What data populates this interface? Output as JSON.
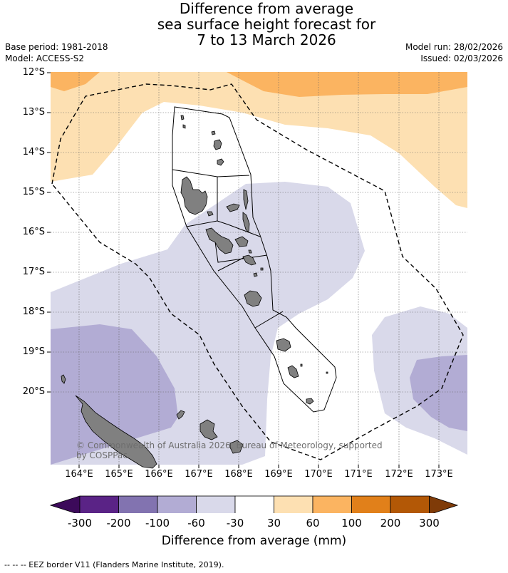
{
  "title": {
    "line1": "Difference from average",
    "line2": "sea surface height forecast for",
    "line3": "7 to 13 March 2026"
  },
  "header_left": {
    "base_period": "Base period: 1981-2018",
    "model": "Model: ACCESS-S2"
  },
  "header_right": {
    "model_run": "Model run: 28/02/2026",
    "issued": "Issued: 02/03/2026"
  },
  "map": {
    "lat_labels": [
      "12°S",
      "13°S",
      "14°S",
      "15°S",
      "16°S",
      "17°S",
      "18°S",
      "19°S",
      "20°S"
    ],
    "lon_labels": [
      "164°E",
      "165°E",
      "166°E",
      "167°E",
      "168°E",
      "169°E",
      "170°E",
      "171°E",
      "172°E",
      "173°E"
    ],
    "copyright_line1": "© Commonwealth of Australia 2026, Bureau of Meteorology, supported",
    "copyright_line2": "by COSPPac",
    "land_color": "#808080",
    "colors": {
      "n300": "#3c0a5a",
      "n200": "#5a2386",
      "n100": "#8273b0",
      "n60": "#b2acd4",
      "n30": "#d9d9ea",
      "zero": "#ffffff",
      "p30": "#fde0b2",
      "p60": "#fbb461",
      "p100": "#e1801a",
      "p200": "#b35806",
      "p300": "#7f3b08"
    }
  },
  "colorbar": {
    "labels": [
      "-300",
      "-200",
      "-100",
      "-60",
      "-30",
      "30",
      "60",
      "100",
      "200",
      "300"
    ],
    "colors": [
      "#5a2386",
      "#8273b0",
      "#b2acd4",
      "#d9d9ea",
      "#ffffff",
      "#fde0b2",
      "#fbb461",
      "#e1801a",
      "#b35806"
    ],
    "low_color": "#3c0a5a",
    "high_color": "#7f3b08",
    "label": "Difference from average (mm)"
  },
  "footer": {
    "legend": "--  --  -- EEZ border V11 (Flanders Marine Institute, 2019)."
  }
}
